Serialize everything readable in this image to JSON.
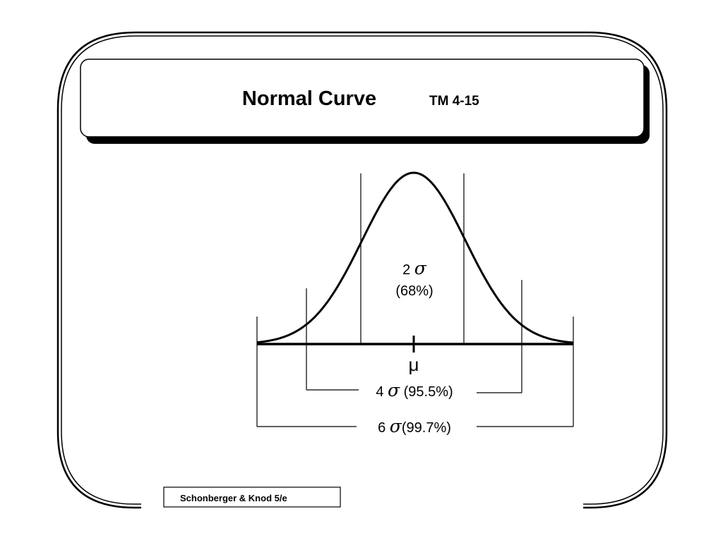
{
  "slide": {
    "title": "Normal Curve",
    "tm_number": "TM 4-15",
    "footer": "Schonberger & Knod  5/e"
  },
  "diagram": {
    "mean_symbol": "μ",
    "sigma_symbol": "σ",
    "band_2": {
      "multiplier": "2",
      "percent": "(68%)"
    },
    "band_4": {
      "multiplier": "4",
      "percent": "(95.5%)"
    },
    "band_6": {
      "multiplier": "6",
      "percent": "(99.7%)"
    }
  }
}
